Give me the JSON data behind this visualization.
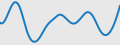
{
  "y_values": [
    25,
    30,
    42,
    38,
    18,
    8,
    12,
    22,
    28,
    32,
    28,
    24,
    28,
    34,
    30,
    18,
    14,
    22,
    40
  ],
  "line_color": "#1a7abf",
  "line_width": 1.4,
  "background_color": "#e8e8e8"
}
